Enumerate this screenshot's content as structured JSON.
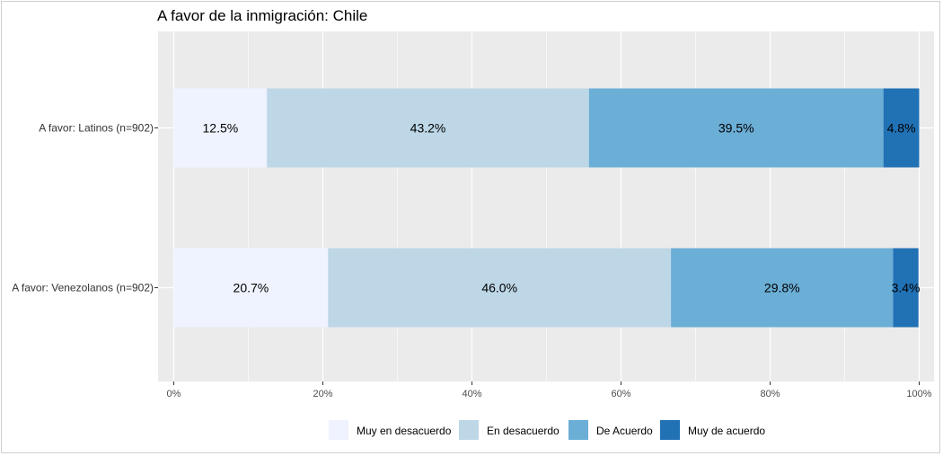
{
  "chart_data": {
    "type": "bar",
    "orientation": "horizontal",
    "stacked": true,
    "title": "A favor de la inmigración: Chile",
    "xlabel": "",
    "ylabel": "",
    "categories": [
      "A favor: Latinos (n=902)",
      "A favor: Venezolanos (n=902)"
    ],
    "series": [
      {
        "name": "Muy en desacuerdo",
        "color": "#eff3ff",
        "values": [
          12.5,
          20.7
        ],
        "labels": [
          "12.5%",
          "20.7%"
        ]
      },
      {
        "name": "En desacuerdo",
        "color": "#bdd7e7",
        "values": [
          43.2,
          46.0
        ],
        "labels": [
          "43.2%",
          "46.0%"
        ]
      },
      {
        "name": "De Acuerdo",
        "color": "#6baed6",
        "values": [
          39.5,
          29.8
        ],
        "labels": [
          "39.5%",
          "29.8%"
        ]
      },
      {
        "name": "Muy de acuerdo",
        "color": "#2171b5",
        "values": [
          4.8,
          3.4
        ],
        "labels": [
          "4.8%",
          "3.4%"
        ]
      }
    ],
    "xlim": [
      0,
      100
    ],
    "xticks": [
      0,
      20,
      40,
      60,
      80,
      100
    ],
    "xtick_labels": [
      "0%",
      "20%",
      "40%",
      "60%",
      "80%",
      "100%"
    ],
    "grid": true,
    "legend_position": "bottom",
    "panel_color": "#ebebeb"
  }
}
